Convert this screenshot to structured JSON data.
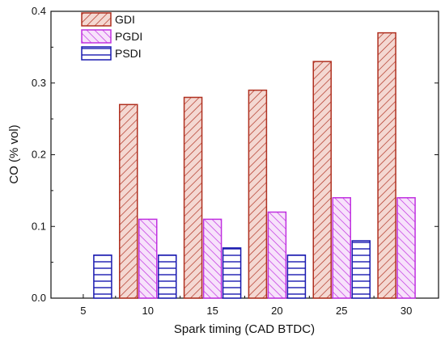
{
  "chart_data": {
    "type": "bar",
    "title": "",
    "xlabel": "Spark timing (CAD BTDC)",
    "ylabel": "CO (% vol)",
    "categories": [
      "5",
      "10",
      "15",
      "20",
      "25",
      "30"
    ],
    "ylim": [
      0,
      0.4
    ],
    "yticks": [
      "0.0",
      "0.1",
      "0.2",
      "0.3",
      "0.4"
    ],
    "legend_position": "top-left",
    "grid": false,
    "series": [
      {
        "name": "GDI",
        "values": [
          null,
          0.27,
          0.28,
          0.29,
          0.33,
          0.37
        ],
        "color": "#b03020",
        "fill": "#f4d8d2",
        "pattern": "diagonal-forward"
      },
      {
        "name": "PGDI",
        "values": [
          null,
          0.11,
          0.11,
          0.12,
          0.14,
          0.14
        ],
        "color": "#c030e0",
        "fill": "#f7e2fb",
        "pattern": "diagonal-backward"
      },
      {
        "name": "PSDI",
        "values": [
          0.06,
          0.06,
          0.07,
          0.06,
          0.08,
          null
        ],
        "color": "#1a1ab0",
        "fill": "#ffffff",
        "pattern": "horizontal"
      }
    ]
  }
}
